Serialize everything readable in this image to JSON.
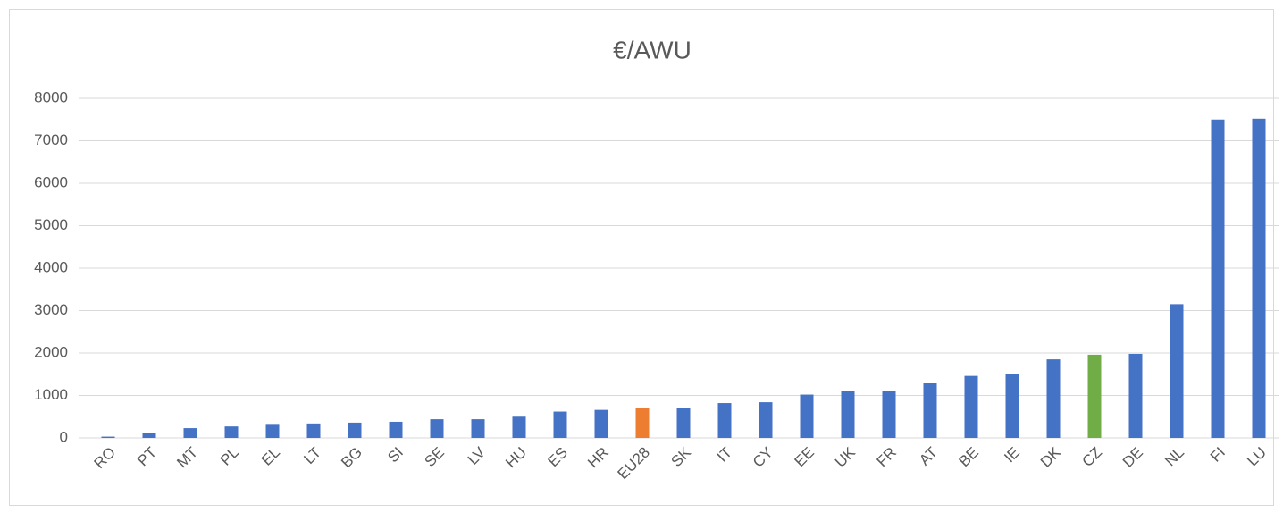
{
  "chart_data": {
    "type": "bar",
    "title": "€/AWU",
    "categories": [
      "RO",
      "PT",
      "MT",
      "PL",
      "EL",
      "LT",
      "BG",
      "SI",
      "SE",
      "LV",
      "HU",
      "ES",
      "HR",
      "EU28",
      "SK",
      "IT",
      "CY",
      "EE",
      "UK",
      "FR",
      "AT",
      "BE",
      "IE",
      "DK",
      "CZ",
      "DE",
      "NL",
      "FI",
      "LU"
    ],
    "values": [
      30,
      110,
      230,
      270,
      330,
      340,
      360,
      380,
      440,
      440,
      500,
      620,
      660,
      700,
      710,
      820,
      840,
      1020,
      1100,
      1110,
      1290,
      1460,
      1500,
      1850,
      1960,
      1980,
      3150,
      7500,
      7520
    ],
    "colors": [
      "#4472c4",
      "#4472c4",
      "#4472c4",
      "#4472c4",
      "#4472c4",
      "#4472c4",
      "#4472c4",
      "#4472c4",
      "#4472c4",
      "#4472c4",
      "#4472c4",
      "#4472c4",
      "#4472c4",
      "#ed7d31",
      "#4472c4",
      "#4472c4",
      "#4472c4",
      "#4472c4",
      "#4472c4",
      "#4472c4",
      "#4472c4",
      "#4472c4",
      "#4472c4",
      "#4472c4",
      "#70ad47",
      "#4472c4",
      "#4472c4",
      "#4472c4",
      "#4472c4"
    ],
    "ylim": [
      0,
      8000
    ],
    "yticks": [
      0,
      1000,
      2000,
      3000,
      4000,
      5000,
      6000,
      7000,
      8000
    ],
    "grid": true
  }
}
